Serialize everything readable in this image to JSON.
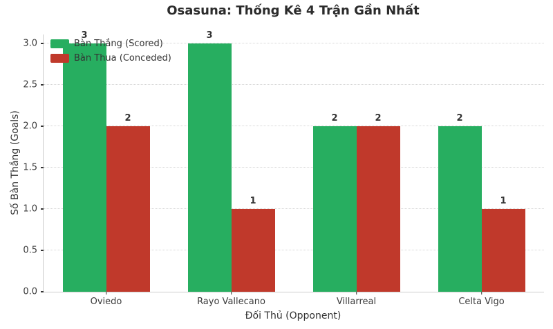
{
  "chart_data": {
    "type": "bar",
    "title": "Osasuna: Thống Kê 4 Trận Gần Nhất",
    "xlabel": "Đối Thủ (Opponent)",
    "ylabel": "Số Bàn Thắng (Goals)",
    "categories": [
      "Oviedo",
      "Rayo Vallecano",
      "Villarreal",
      "Celta Vigo"
    ],
    "series": [
      {
        "name": "Bàn Thắng (Scored)",
        "color": "#27ae60",
        "values": [
          3,
          3,
          2,
          2
        ]
      },
      {
        "name": "Bàn Thua (Conceded)",
        "color": "#c0392b",
        "values": [
          2,
          1,
          2,
          1
        ]
      }
    ],
    "ylim": [
      0,
      3.1
    ],
    "yticks": [
      0.0,
      0.5,
      1.0,
      1.5,
      2.0,
      2.5,
      3.0
    ],
    "ytick_labels": [
      "0.0",
      "0.5",
      "1.0",
      "1.5",
      "2.0",
      "2.5",
      "3.0"
    ],
    "grid": true,
    "grid_style": "dotted",
    "grid_color": "#d6d6d6",
    "spine_color": "#cccccc",
    "background_color": "#ffffff",
    "value_labels_shown": true,
    "legend_position": "upper left"
  }
}
